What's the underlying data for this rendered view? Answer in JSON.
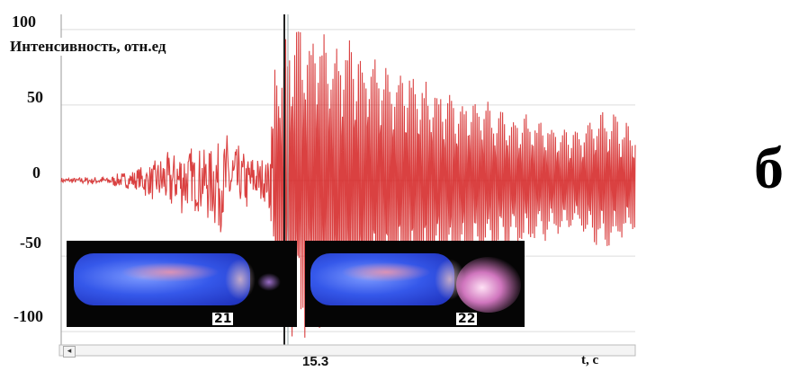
{
  "panel_label": "б",
  "chart_data": {
    "type": "line",
    "title": "",
    "ylabel": "Интенсивность, отн.ед",
    "xlabel": "t, c",
    "ylim": [
      -110,
      110
    ],
    "yticks": [
      "100",
      "50",
      "0",
      "-50",
      "-100"
    ],
    "ytick_values": [
      100,
      50,
      0,
      -50,
      -100
    ],
    "xtick_labels": [
      "15.3"
    ],
    "grid": true,
    "line_color": "#d42020",
    "envelope": [
      {
        "t": 0.0,
        "amp": 2
      },
      {
        "t": 0.08,
        "amp": 3
      },
      {
        "t": 0.13,
        "amp": 8
      },
      {
        "t": 0.17,
        "amp": 16
      },
      {
        "t": 0.21,
        "amp": 26
      },
      {
        "t": 0.24,
        "amp": 22
      },
      {
        "t": 0.26,
        "amp": 30
      },
      {
        "t": 0.28,
        "amp": 40
      },
      {
        "t": 0.31,
        "amp": 25
      },
      {
        "t": 0.34,
        "amp": 18
      },
      {
        "t": 0.36,
        "amp": 14
      },
      {
        "t": 0.37,
        "amp": 80
      },
      {
        "t": 0.4,
        "amp": 105
      },
      {
        "t": 0.46,
        "amp": 105
      },
      {
        "t": 0.52,
        "amp": 92
      },
      {
        "t": 0.6,
        "amp": 75
      },
      {
        "t": 0.7,
        "amp": 58
      },
      {
        "t": 0.8,
        "amp": 45
      },
      {
        "t": 0.9,
        "amp": 35
      },
      {
        "t": 0.95,
        "amp": 50
      },
      {
        "t": 1.0,
        "amp": 35
      }
    ],
    "marker_x_label": "15.3"
  },
  "frames": [
    {
      "number": "21"
    },
    {
      "number": "22"
    }
  ],
  "scrollbar": {
    "left_arrow": "◂"
  }
}
